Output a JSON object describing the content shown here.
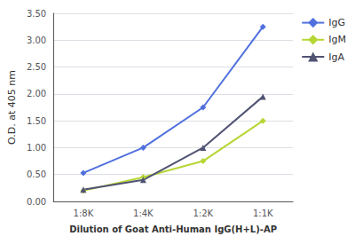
{
  "chart_data": {
    "type": "line",
    "xlabel": "Dilution of Goat Anti-Human IgG(H+L)-AP",
    "ylabel": "O.D. at 405 nm",
    "categories": [
      "1:8K",
      "1:4K",
      "1:2K",
      "1:1K"
    ],
    "series": [
      {
        "name": "IgG",
        "values": [
          0.53,
          1.0,
          1.75,
          3.25
        ],
        "marker": "diamond"
      },
      {
        "name": "IgM",
        "values": [
          0.2,
          0.45,
          0.75,
          1.5
        ],
        "marker": "diamond"
      },
      {
        "name": "IgA",
        "values": [
          0.22,
          0.4,
          1.0,
          1.95
        ],
        "marker": "triangle"
      }
    ],
    "ylim": [
      0.0,
      3.5
    ],
    "yticks": [
      {
        "value": 0,
        "label": "0.00"
      },
      {
        "value": 0.5,
        "label": "0.50"
      },
      {
        "value": 1,
        "label": "1.00"
      },
      {
        "value": 1.5,
        "label": "1.50"
      },
      {
        "value": 2,
        "label": "2.00"
      },
      {
        "value": 2.5,
        "label": "2.50"
      },
      {
        "value": 3,
        "label": "3.00"
      },
      {
        "value": 3.5,
        "label": "3.50"
      }
    ],
    "grid": true,
    "legend": "right"
  }
}
